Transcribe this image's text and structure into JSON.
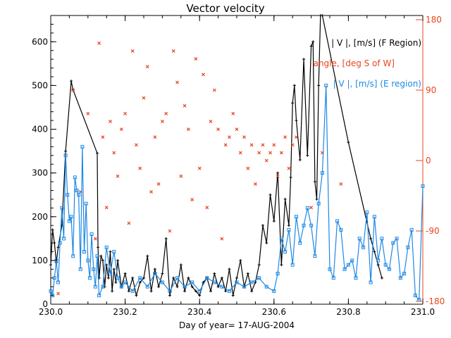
{
  "chart_data": {
    "type": "line",
    "title": "Vector velocity",
    "xlabel": "Day of year= 17-AUG-2004",
    "ylabel": "",
    "xlim": [
      230.0,
      231.0
    ],
    "ylim": [
      0,
      660
    ],
    "y2lim": [
      -180,
      180
    ],
    "x_ticks": [
      "230.0",
      "230.2",
      "230.4",
      "230.6",
      "230.8",
      "231.0"
    ],
    "x_tick_values": [
      230.0,
      230.2,
      230.4,
      230.6,
      230.8,
      231.0
    ],
    "y_ticks": [
      "0",
      "100",
      "200",
      "300",
      "400",
      "500",
      "600"
    ],
    "y_tick_values": [
      0,
      100,
      200,
      300,
      400,
      500,
      600
    ],
    "y2_ticks": [
      "-180",
      "-90",
      "0",
      "90",
      "180"
    ],
    "y2_tick_values": [
      -180,
      -90,
      0,
      90,
      180
    ],
    "grid": false,
    "legend_position": "top-right",
    "colors": {
      "f_region": "#000000",
      "angle": "#e8461e",
      "e_region": "#1e88e5",
      "axis2": "#e8461e"
    },
    "legend": [
      {
        "label": "| V |, [m/s] (F Region)",
        "color": "#000000"
      },
      {
        "label": "angle, [deg S of W]",
        "color": "#e8461e"
      },
      {
        "label": "| V |, [m/s] (E region)",
        "color": "#1e88e5"
      }
    ],
    "series": [
      {
        "name": "|V| F Region",
        "axis": "left",
        "style": "line-plus",
        "x": [
          230.0,
          230.005,
          230.01,
          230.015,
          230.02,
          230.03,
          230.04,
          230.055,
          230.06,
          230.125,
          230.127,
          230.13,
          230.135,
          230.14,
          230.145,
          230.15,
          230.155,
          230.16,
          230.165,
          230.17,
          230.175,
          230.18,
          230.19,
          230.2,
          230.21,
          230.22,
          230.23,
          230.24,
          230.25,
          230.26,
          230.27,
          230.28,
          230.29,
          230.3,
          230.31,
          230.32,
          230.33,
          230.34,
          230.35,
          230.36,
          230.37,
          230.38,
          230.39,
          230.4,
          230.41,
          230.42,
          230.43,
          230.44,
          230.45,
          230.46,
          230.47,
          230.48,
          230.49,
          230.5,
          230.51,
          230.52,
          230.53,
          230.54,
          230.55,
          230.56,
          230.57,
          230.58,
          230.59,
          230.6,
          230.61,
          230.62,
          230.63,
          230.64,
          230.645,
          230.65,
          230.655,
          230.66,
          230.67,
          230.68,
          230.69,
          230.7,
          230.705,
          230.71,
          230.715,
          230.72,
          230.725,
          230.73,
          230.8,
          230.86,
          230.87,
          230.88,
          230.89
        ],
        "y": [
          90,
          170,
          140,
          95,
          130,
          180,
          350,
          510,
          490,
          345,
          130,
          60,
          110,
          100,
          40,
          90,
          60,
          120,
          30,
          80,
          50,
          100,
          40,
          70,
          30,
          60,
          20,
          50,
          60,
          110,
          30,
          80,
          40,
          70,
          150,
          20,
          60,
          40,
          90,
          30,
          60,
          40,
          30,
          20,
          50,
          60,
          30,
          70,
          40,
          60,
          30,
          80,
          20,
          60,
          100,
          40,
          70,
          30,
          50,
          90,
          180,
          140,
          250,
          190,
          300,
          90,
          240,
          180,
          290,
          460,
          500,
          420,
          330,
          560,
          340,
          590,
          600,
          280,
          240,
          500,
          700,
          660,
          370,
          150,
          120,
          90,
          60
        ]
      },
      {
        "name": "angle",
        "axis": "right",
        "style": "markers-x",
        "x": [
          230.02,
          230.06,
          230.08,
          230.1,
          230.12,
          230.13,
          230.14,
          230.15,
          230.16,
          230.17,
          230.18,
          230.19,
          230.2,
          230.21,
          230.22,
          230.23,
          230.24,
          230.25,
          230.26,
          230.27,
          230.28,
          230.29,
          230.3,
          230.31,
          230.32,
          230.33,
          230.34,
          230.35,
          230.36,
          230.37,
          230.38,
          230.39,
          230.4,
          230.41,
          230.42,
          230.43,
          230.44,
          230.45,
          230.46,
          230.47,
          230.48,
          230.49,
          230.5,
          230.51,
          230.52,
          230.53,
          230.54,
          230.55,
          230.56,
          230.57,
          230.58,
          230.59,
          230.6,
          230.61,
          230.62,
          230.63,
          230.64,
          230.65,
          230.66,
          230.7,
          230.73,
          230.78
        ],
        "y": [
          -170,
          90,
          -40,
          60,
          -100,
          150,
          30,
          -60,
          50,
          10,
          -20,
          40,
          60,
          -80,
          140,
          20,
          -10,
          80,
          120,
          -40,
          30,
          -30,
          50,
          60,
          -90,
          140,
          100,
          -20,
          70,
          40,
          -50,
          130,
          -10,
          110,
          -60,
          50,
          90,
          40,
          -100,
          20,
          30,
          60,
          40,
          10,
          30,
          -10,
          20,
          -30,
          10,
          20,
          0,
          10,
          20,
          -20,
          10,
          30,
          -10,
          20,
          30,
          -60,
          10,
          -30
        ]
      },
      {
        "name": "|V| E region",
        "axis": "left",
        "style": "line-square",
        "x": [
          230.0,
          230.005,
          230.01,
          230.015,
          230.02,
          230.025,
          230.03,
          230.035,
          230.04,
          230.045,
          230.05,
          230.055,
          230.06,
          230.065,
          230.07,
          230.075,
          230.08,
          230.085,
          230.09,
          230.095,
          230.1,
          230.105,
          230.11,
          230.115,
          230.12,
          230.125,
          230.13,
          230.14,
          230.15,
          230.16,
          230.17,
          230.18,
          230.19,
          230.2,
          230.22,
          230.24,
          230.26,
          230.28,
          230.3,
          230.32,
          230.34,
          230.36,
          230.38,
          230.4,
          230.42,
          230.44,
          230.46,
          230.48,
          230.5,
          230.52,
          230.54,
          230.56,
          230.58,
          230.6,
          230.61,
          230.62,
          230.63,
          230.64,
          230.65,
          230.66,
          230.67,
          230.68,
          230.69,
          230.7,
          230.71,
          230.72,
          230.73,
          230.74,
          230.75,
          230.76,
          230.77,
          230.78,
          230.79,
          230.8,
          230.81,
          230.82,
          230.83,
          230.84,
          230.85,
          230.86,
          230.87,
          230.88,
          230.89,
          230.9,
          230.91,
          230.92,
          230.93,
          230.94,
          230.95,
          230.96,
          230.97,
          230.98,
          230.99,
          231.0
        ],
        "y": [
          30,
          20,
          60,
          100,
          50,
          140,
          220,
          150,
          340,
          250,
          190,
          200,
          110,
          290,
          260,
          250,
          80,
          360,
          120,
          230,
          100,
          60,
          160,
          80,
          40,
          110,
          20,
          40,
          130,
          70,
          120,
          60,
          40,
          50,
          30,
          60,
          40,
          70,
          50,
          30,
          60,
          40,
          50,
          30,
          60,
          50,
          40,
          30,
          50,
          40,
          50,
          60,
          40,
          30,
          70,
          150,
          120,
          170,
          90,
          200,
          140,
          180,
          220,
          180,
          110,
          230,
          300,
          500,
          80,
          60,
          190,
          170,
          80,
          90,
          100,
          60,
          150,
          130,
          210,
          50,
          200,
          100,
          150,
          90,
          80,
          140,
          150,
          60,
          70,
          130,
          170,
          20,
          10,
          270
        ]
      }
    ]
  }
}
